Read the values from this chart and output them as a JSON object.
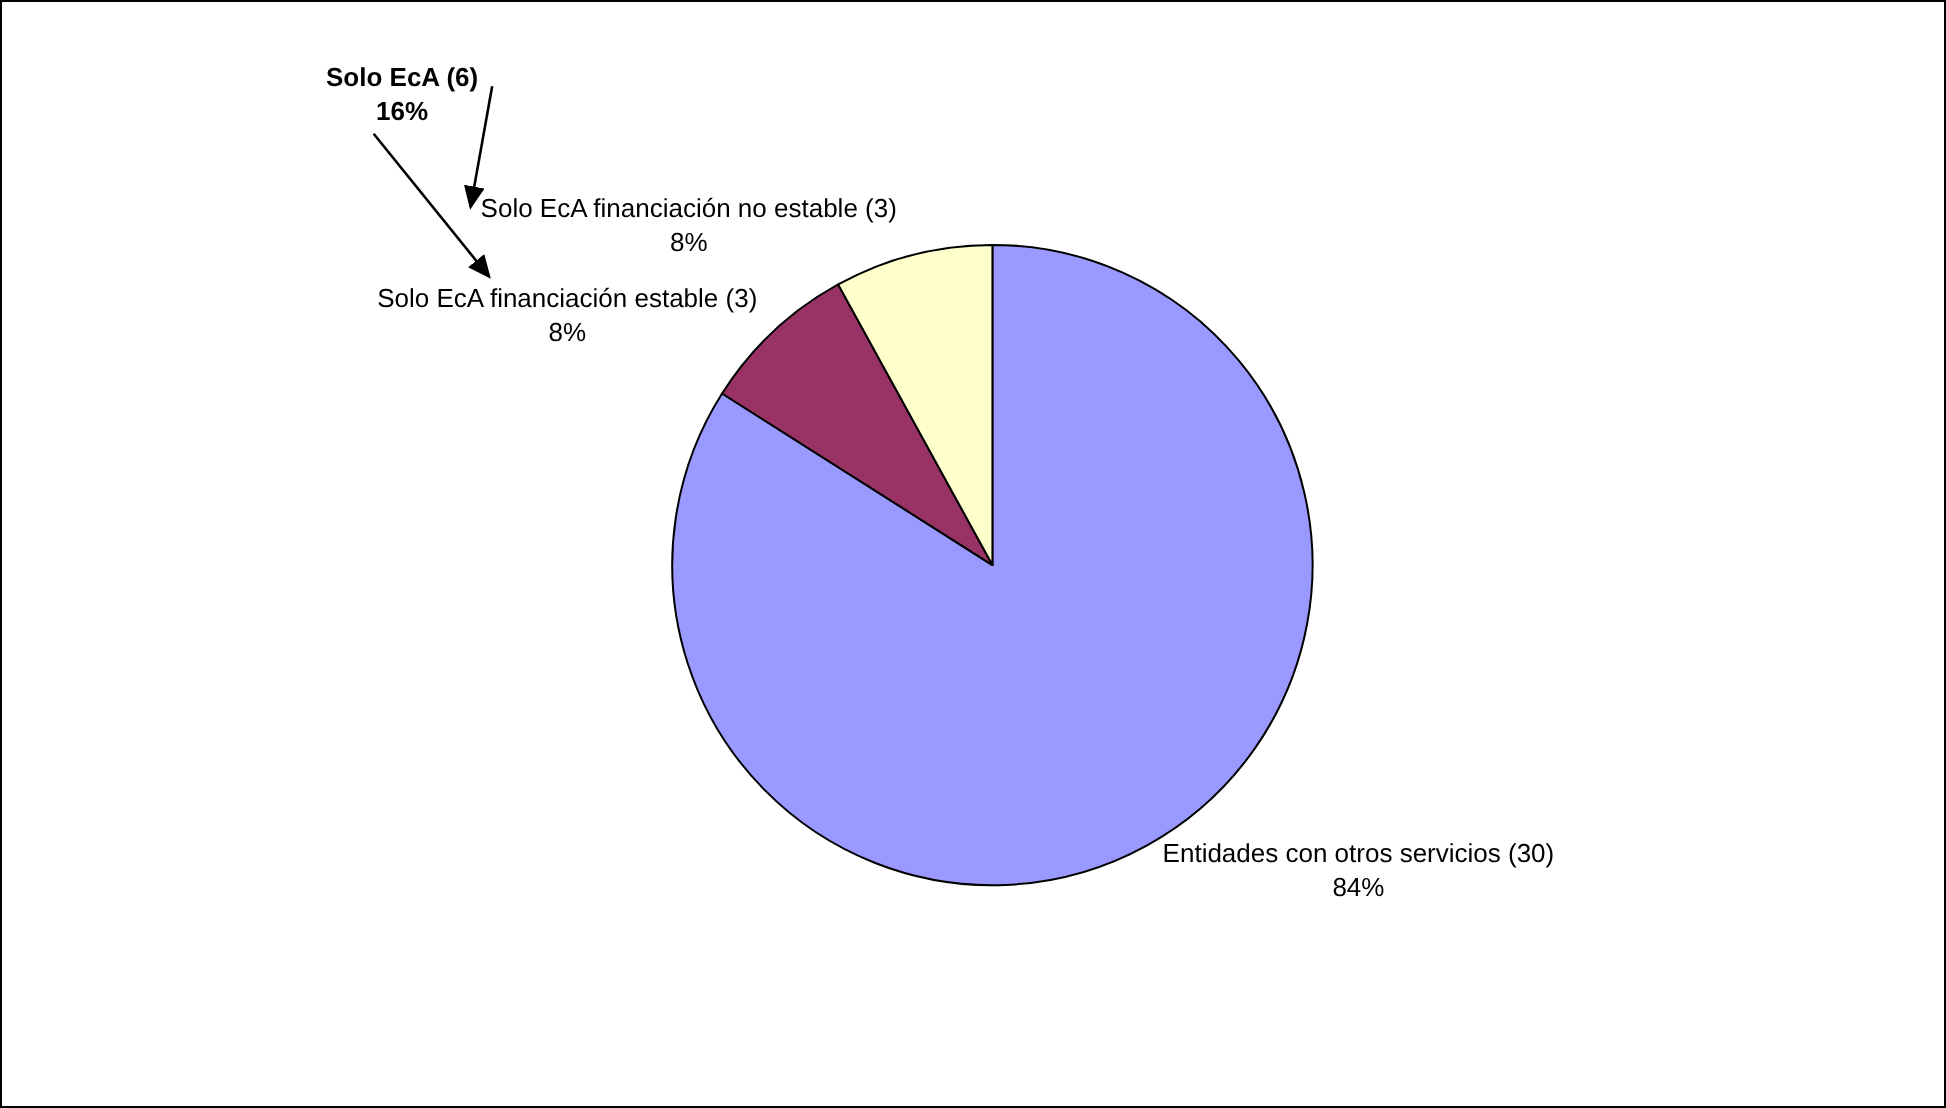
{
  "chart_data": {
    "type": "pie",
    "categories": [
      "Entidades con otros servicios (30)",
      "Solo EcA financiación estable (3)",
      "Solo EcA financiación no estable (3)"
    ],
    "values": [
      84,
      8,
      8
    ],
    "value_labels": [
      "84%",
      "8%",
      "8%"
    ],
    "colors": [
      "#9999ff",
      "#993366",
      "#ffffcc"
    ],
    "annotations": [
      "Solo EcA (6)\n16%"
    ],
    "legend": false
  }
}
